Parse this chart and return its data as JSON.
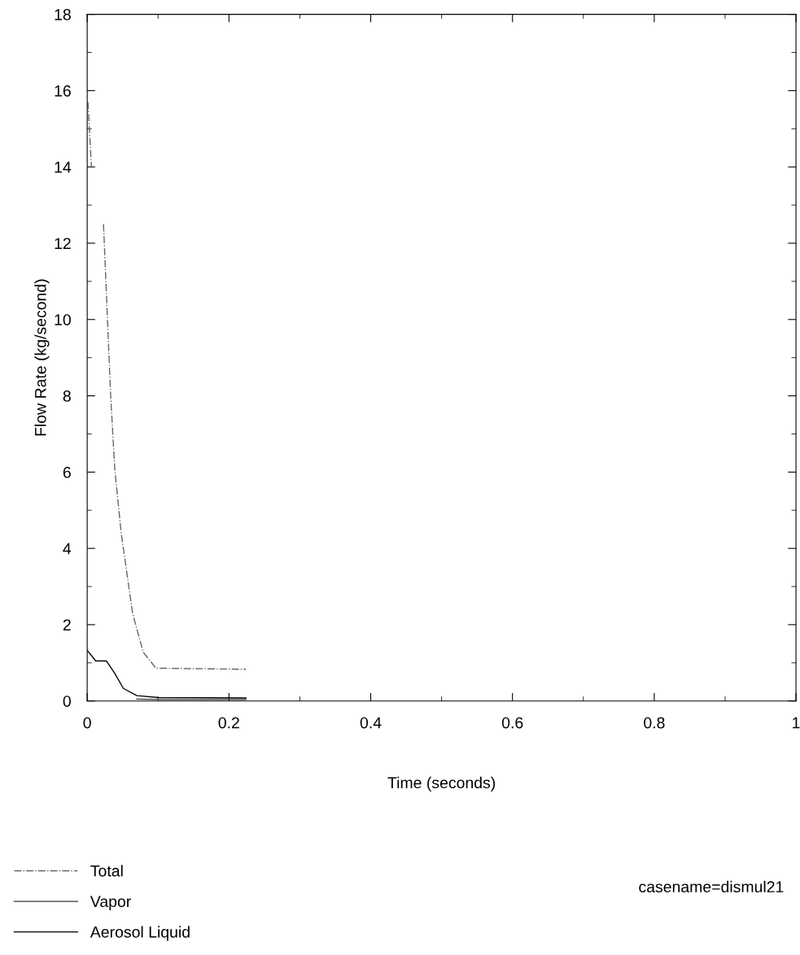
{
  "chart_data": {
    "type": "line",
    "xlabel": "Time (seconds)",
    "ylabel": "Flow Rate (kg/second)",
    "xlim": [
      0,
      1
    ],
    "ylim": [
      0,
      18
    ],
    "xticks": [
      0,
      0.2,
      0.4,
      0.6,
      0.8,
      1
    ],
    "yticks": [
      0,
      2,
      4,
      6,
      8,
      10,
      12,
      14,
      16,
      18
    ],
    "grid": false,
    "legend": "bottom left",
    "marker": "none",
    "annotations": [
      "casename=dismul21"
    ],
    "series": [
      {
        "name": "Total",
        "color": "#666666",
        "line_style": "dashdot",
        "x": [
          0.001,
          0.006,
          0.015,
          0.023,
          0.033,
          0.039,
          0.048,
          0.064,
          0.079,
          0.097,
          0.224
        ],
        "values": [
          15.7,
          14.0,
          null,
          12.5,
          8.05,
          6.05,
          4.4,
          2.3,
          1.28,
          0.86,
          0.83
        ]
      },
      {
        "name": "Vapor",
        "color": "#333333",
        "line_style": "solid",
        "x": [
          0.07,
          0.1,
          0.224
        ],
        "values": [
          0.05,
          0.04,
          0.04
        ]
      },
      {
        "name": "Aerosol Liquid",
        "color": "#000000",
        "line_style": "solid",
        "x": [
          0,
          0.012,
          0.027,
          0.039,
          0.051,
          0.07,
          0.1,
          0.224
        ],
        "values": [
          1.33,
          1.05,
          1.05,
          0.72,
          0.33,
          0.14,
          0.09,
          0.08
        ]
      }
    ]
  }
}
